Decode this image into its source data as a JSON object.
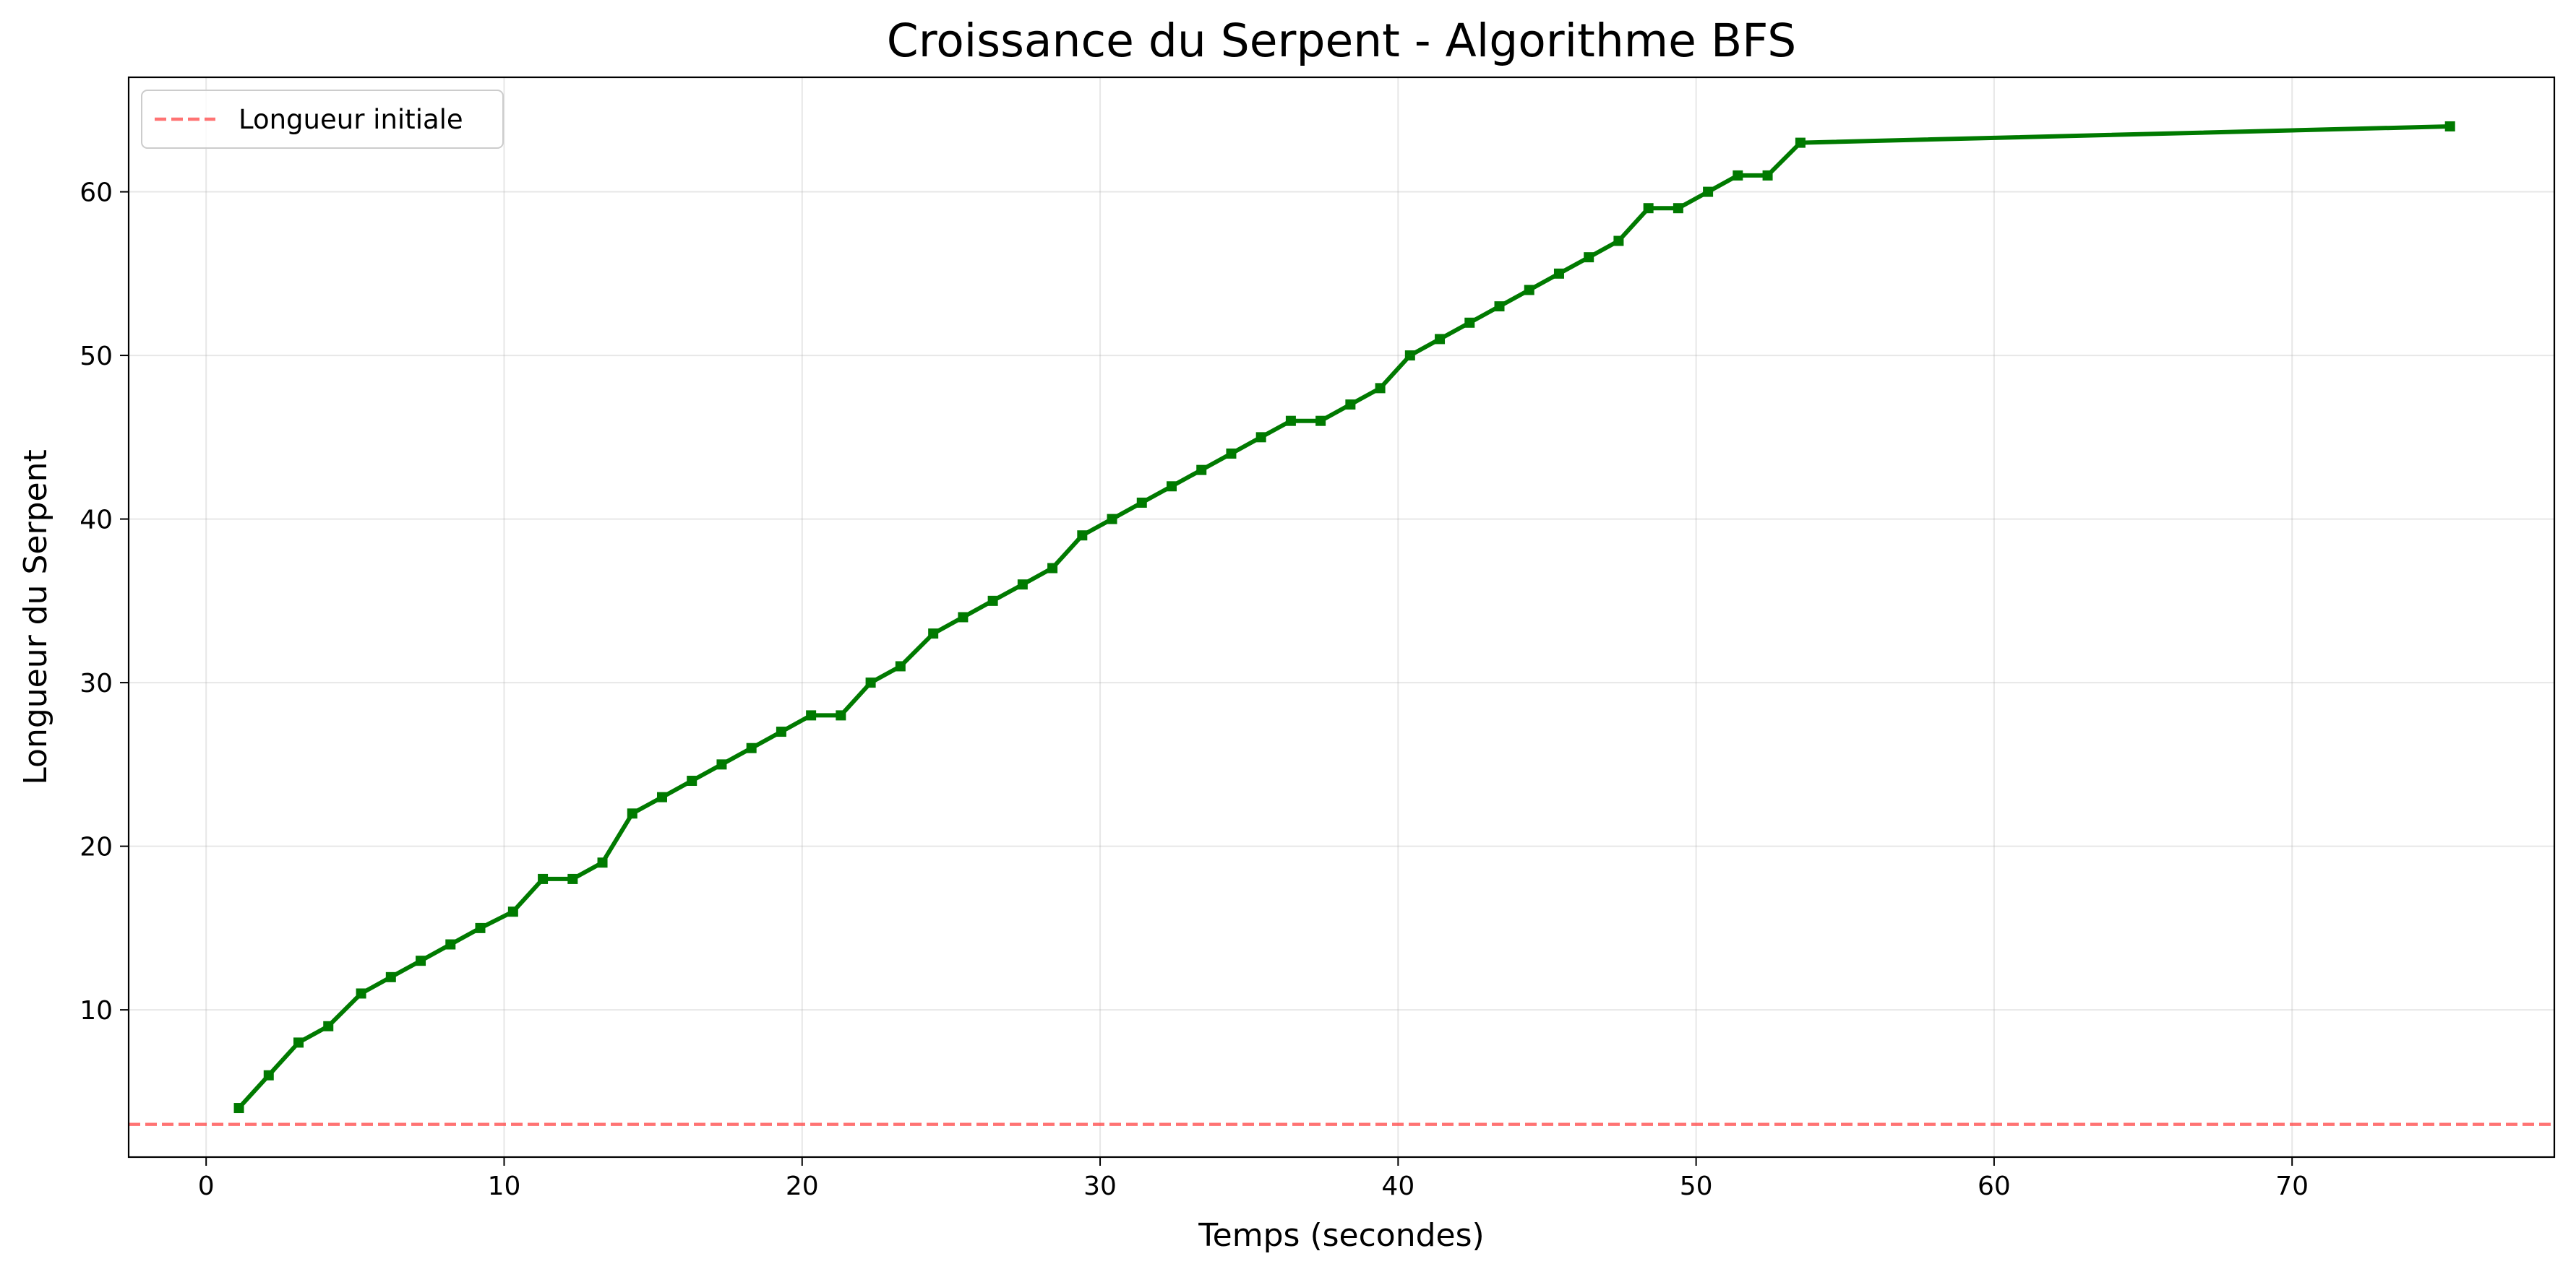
{
  "chart_data": {
    "type": "line",
    "title": "Croissance du Serpent - Algorithme BFS",
    "xlabel": "Temps (secondes)",
    "ylabel": "Longueur du Serpent",
    "xlim": [
      -2.6,
      78.8
    ],
    "ylim": [
      1.0,
      67.0
    ],
    "xticks": [
      0,
      10,
      20,
      30,
      40,
      50,
      60,
      70
    ],
    "yticks": [
      10,
      20,
      30,
      40,
      50,
      60
    ],
    "grid": true,
    "legend": {
      "placement": "top-left",
      "entries": [
        "Longueur initiale"
      ]
    },
    "reference_line": {
      "label": "Longueur initiale",
      "y": 3,
      "color": "#ff4444",
      "style": "dashed"
    },
    "series": [
      {
        "color": "#007a00",
        "marker": "square",
        "x": [
          1.1,
          2.1,
          3.1,
          4.1,
          5.2,
          6.2,
          7.2,
          8.2,
          9.2,
          10.3,
          11.3,
          12.3,
          13.3,
          14.3,
          15.3,
          16.3,
          17.3,
          18.3,
          19.3,
          20.3,
          21.3,
          22.3,
          23.3,
          24.4,
          25.4,
          26.4,
          27.4,
          28.4,
          29.4,
          30.4,
          31.4,
          32.4,
          33.4,
          34.4,
          35.4,
          36.4,
          37.4,
          38.4,
          39.4,
          40.4,
          41.4,
          42.4,
          43.4,
          44.4,
          45.4,
          46.4,
          47.4,
          48.4,
          49.4,
          50.4,
          51.4,
          52.4,
          53.5,
          75.3
        ],
        "y": [
          4,
          6,
          8,
          9,
          11,
          12,
          13,
          14,
          15,
          16,
          18,
          18,
          19,
          22,
          23,
          24,
          25,
          26,
          27,
          28,
          28,
          30,
          31,
          33,
          34,
          35,
          36,
          37,
          39,
          40,
          41,
          42,
          43,
          44,
          45,
          46,
          46,
          47,
          48,
          50,
          51,
          52,
          53,
          54,
          55,
          56,
          57,
          59,
          59,
          60,
          61,
          61,
          63,
          64
        ]
      }
    ]
  }
}
